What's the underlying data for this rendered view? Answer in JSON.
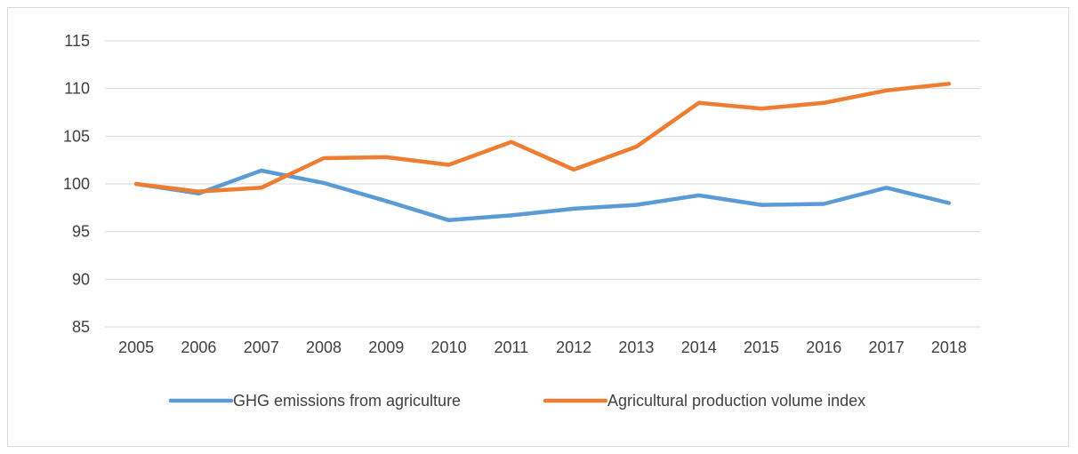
{
  "chart_data": {
    "type": "line",
    "title": "",
    "xlabel": "",
    "ylabel": "",
    "categories": [
      "2005",
      "2006",
      "2007",
      "2008",
      "2009",
      "2010",
      "2011",
      "2012",
      "2013",
      "2014",
      "2015",
      "2016",
      "2017",
      "2018"
    ],
    "ylim": [
      85,
      115
    ],
    "yticks": [
      85,
      90,
      95,
      100,
      105,
      110,
      115
    ],
    "grid": true,
    "legend_position": "bottom",
    "series": [
      {
        "name": "GHG emissions from agriculture",
        "color": "#5b9bd5",
        "values": [
          100.0,
          99.0,
          101.4,
          100.1,
          98.2,
          96.2,
          96.7,
          97.4,
          97.8,
          98.8,
          97.8,
          97.9,
          99.6,
          98.0
        ]
      },
      {
        "name": "Agricultural production volume index",
        "color": "#ed7d31",
        "values": [
          100.0,
          99.2,
          99.6,
          102.7,
          102.8,
          102.0,
          104.4,
          101.5,
          103.9,
          108.5,
          107.9,
          108.5,
          109.8,
          110.5
        ]
      }
    ]
  }
}
